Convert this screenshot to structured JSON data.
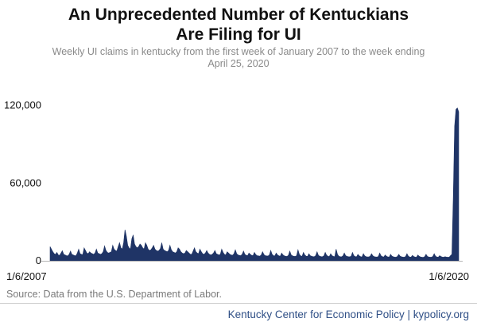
{
  "title_line1": "An Unprecedented Number of Kentuckians",
  "title_line2": "Are Filing for UI",
  "subtitle_line1": "Weekly UI claims in kentucky from the first week of January 2007 to the week ending",
  "subtitle_line2": "April 25, 2020",
  "source": "Source: Data from the U.S. Department of Labor.",
  "footer": "Kentucky Center for Economic Policy | kypolicy.org",
  "colors": {
    "series": "#1f3466",
    "axis": "#b5b5b5",
    "title": "#111111",
    "subtitle": "#8a8a8a",
    "footer": "#2f4f86"
  },
  "chart_data": {
    "type": "area",
    "xlabel": "",
    "ylabel": "",
    "ylim": [
      0,
      140000
    ],
    "yticks": [
      0,
      60000,
      120000
    ],
    "ytick_labels": [
      "0",
      "60,000",
      "120,000"
    ],
    "xtick_labels": [
      "1/6/2007",
      "1/6/2020"
    ],
    "x_date_range": [
      "2007-01-06",
      "2020-04-25"
    ],
    "grid": false,
    "legend": "none",
    "series": [
      {
        "values": [
          11000,
          9000,
          7000,
          5500,
          5000,
          6500,
          4500,
          4200,
          6000,
          7800,
          5000,
          4500,
          4000,
          3800,
          5000,
          7500,
          5000,
          4500,
          4000,
          4000,
          6000,
          9000,
          5500,
          5000,
          4800,
          10000,
          8000,
          6000,
          5500,
          7000,
          6000,
          5500,
          5000,
          6000,
          9000,
          6000,
          5500,
          5000,
          5500,
          7000,
          11500,
          8000,
          6500,
          6000,
          6500,
          7000,
          12000,
          9000,
          8000,
          7500,
          11000,
          14000,
          10000,
          9000,
          14000,
          24000,
          19000,
          12000,
          10000,
          9000,
          17000,
          20000,
          13000,
          11000,
          10000,
          11000,
          13000,
          12000,
          10000,
          9000,
          14000,
          12000,
          9000,
          8000,
          8500,
          10000,
          12000,
          9000,
          8000,
          7500,
          8000,
          9500,
          14000,
          9000,
          8000,
          7500,
          7000,
          8000,
          12000,
          8500,
          7000,
          6500,
          6000,
          7000,
          10000,
          9000,
          7000,
          6000,
          5500,
          6000,
          8000,
          7000,
          6000,
          5000,
          5000,
          7500,
          10000,
          7000,
          6000,
          5500,
          9000,
          7000,
          5500,
          5000,
          6000,
          8000,
          6000,
          5000,
          4500,
          5000,
          6000,
          8000,
          5500,
          5000,
          4500,
          5000,
          9000,
          6500,
          5000,
          4500,
          7000,
          6000,
          5000,
          4500,
          4300,
          5500,
          8500,
          5500,
          4500,
          4200,
          4000,
          5000,
          7500,
          5000,
          4300,
          4000,
          6000,
          5000,
          4200,
          4000,
          6500,
          4800,
          4000,
          3800,
          3600,
          4500,
          7000,
          4800,
          4000,
          3800,
          3700,
          4500,
          8000,
          5000,
          4000,
          3800,
          6000,
          4500,
          3800,
          3600,
          6000,
          4500,
          3800,
          3500,
          3400,
          4300,
          7500,
          4500,
          3800,
          3500,
          3400,
          4000,
          8500,
          5000,
          3800,
          3500,
          6500,
          4500,
          3600,
          3400,
          5500,
          4000,
          3500,
          3300,
          3200,
          4000,
          7000,
          4200,
          3500,
          3300,
          3200,
          3800,
          6500,
          4300,
          3500,
          3300,
          5500,
          4000,
          3400,
          3200,
          9000,
          5000,
          3500,
          3200,
          3100,
          3800,
          6000,
          4000,
          3400,
          3200,
          3100,
          3500,
          6500,
          4000,
          3300,
          3100,
          5000,
          3800,
          3200,
          3000,
          5500,
          3800,
          3200,
          3000,
          3000,
          3600,
          5500,
          3800,
          3200,
          3000,
          2900,
          3400,
          6000,
          3800,
          3200,
          3000,
          4500,
          3500,
          3000,
          2900,
          5000,
          3600,
          3100,
          2900,
          2800,
          3400,
          5000,
          3600,
          3100,
          2900,
          2800,
          3300,
          5500,
          3600,
          3000,
          2800,
          4200,
          3300,
          2900,
          2800,
          4500,
          3500,
          3000,
          2800,
          2700,
          3200,
          5000,
          3400,
          3000,
          2800,
          2800,
          3400,
          5500,
          3500,
          3000,
          2800,
          4000,
          3300,
          2900,
          2800,
          3200,
          2900,
          2800,
          2800,
          4000,
          5000,
          49000,
          104000,
          117000,
          118000,
          115000
        ]
      }
    ]
  }
}
